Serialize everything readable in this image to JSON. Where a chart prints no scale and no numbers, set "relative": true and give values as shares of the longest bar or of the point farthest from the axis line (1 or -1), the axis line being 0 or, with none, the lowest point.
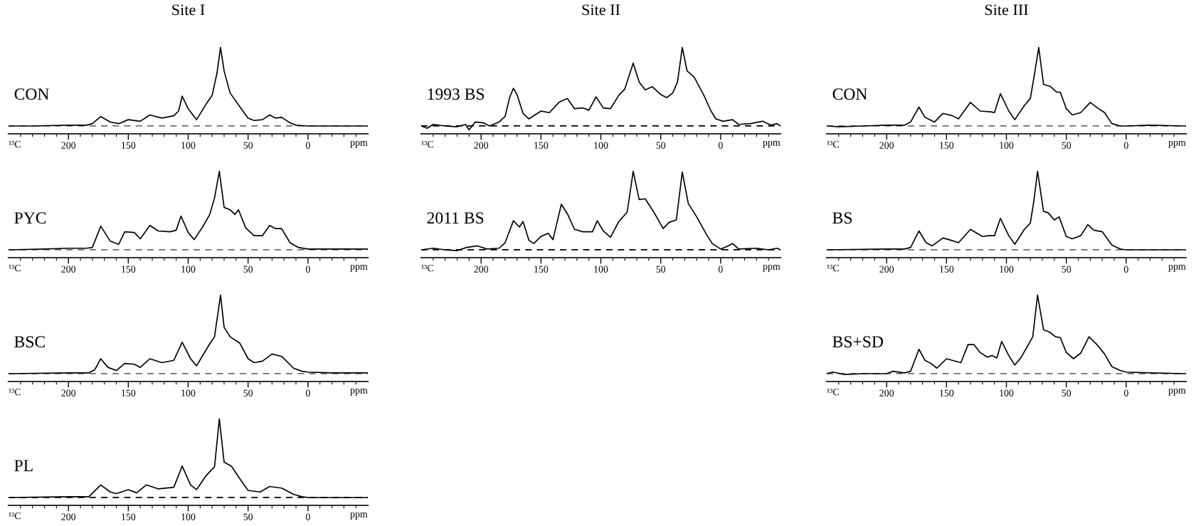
{
  "chart_data": [
    {
      "type": "line",
      "title": "Site I",
      "xlabel": "ppm",
      "annotations": [
        "¹³C"
      ],
      "relative": true,
      "tick_labels": "x",
      "xlim": [
        250,
        -50
      ],
      "xticks": [
        {
          "value": 240,
          "label": null
        },
        {
          "value": 230,
          "label": null
        },
        {
          "value": 220,
          "label": null
        },
        {
          "value": 210,
          "label": null
        },
        200,
        {
          "value": 190,
          "label": null
        },
        {
          "value": 180,
          "label": null
        },
        {
          "value": 170,
          "label": null
        },
        {
          "value": 160,
          "label": null
        },
        150,
        {
          "value": 140,
          "label": null
        },
        {
          "value": 130,
          "label": null
        },
        {
          "value": 120,
          "label": null
        },
        {
          "value": 110,
          "label": null
        },
        100,
        {
          "value": 90,
          "label": null
        },
        {
          "value": 80,
          "label": null
        },
        {
          "value": 70,
          "label": null
        },
        {
          "value": 60,
          "label": null
        },
        50,
        {
          "value": 40,
          "label": null
        },
        {
          "value": 30,
          "label": null
        },
        {
          "value": 20,
          "label": null
        },
        {
          "value": 10,
          "label": null
        },
        0,
        {
          "value": -10,
          "label": null
        },
        {
          "value": -20,
          "label": null
        },
        {
          "value": -30,
          "label": null
        },
        {
          "value": -40,
          "label": null
        }
      ],
      "ref_lines": [
        {
          "axis": "y",
          "value": 0,
          "color": "#6e6e6e",
          "line_style": "dashed"
        }
      ],
      "series": [
        {
          "name": "CON",
          "color": "#000000",
          "x": [
            250,
            230,
            200,
            185,
            180,
            173,
            165,
            158,
            150,
            140,
            132,
            122,
            112,
            108,
            105,
            100,
            93,
            85,
            80,
            76,
            73,
            70,
            65,
            58,
            50,
            45,
            38,
            32,
            27,
            22,
            15,
            10,
            0,
            -20,
            -50
          ],
          "values": [
            0,
            0,
            0.01,
            0.01,
            0.03,
            0.12,
            0.05,
            0.03,
            0.08,
            0.06,
            0.14,
            0.1,
            0.13,
            0.19,
            0.38,
            0.22,
            0.08,
            0.28,
            0.39,
            0.67,
            1.0,
            0.7,
            0.42,
            0.27,
            0.1,
            0.07,
            0.08,
            0.14,
            0.1,
            0.11,
            0.04,
            0.01,
            0,
            0,
            0
          ]
        }
      ]
    },
    {
      "type": "line",
      "xlabel": "ppm",
      "annotations": [
        "¹³C"
      ],
      "relative": true,
      "tick_labels": "x",
      "xlim": [
        250,
        -50
      ],
      "xticks": [
        {
          "value": 240,
          "label": null
        },
        {
          "value": 230,
          "label": null
        },
        {
          "value": 220,
          "label": null
        },
        {
          "value": 210,
          "label": null
        },
        200,
        {
          "value": 190,
          "label": null
        },
        {
          "value": 180,
          "label": null
        },
        {
          "value": 170,
          "label": null
        },
        {
          "value": 160,
          "label": null
        },
        150,
        {
          "value": 140,
          "label": null
        },
        {
          "value": 130,
          "label": null
        },
        {
          "value": 120,
          "label": null
        },
        {
          "value": 110,
          "label": null
        },
        100,
        {
          "value": 90,
          "label": null
        },
        {
          "value": 80,
          "label": null
        },
        {
          "value": 70,
          "label": null
        },
        {
          "value": 60,
          "label": null
        },
        50,
        {
          "value": 40,
          "label": null
        },
        {
          "value": 30,
          "label": null
        },
        {
          "value": 20,
          "label": null
        },
        {
          "value": 10,
          "label": null
        },
        0,
        {
          "value": -10,
          "label": null
        },
        {
          "value": -20,
          "label": null
        },
        {
          "value": -30,
          "label": null
        },
        {
          "value": -40,
          "label": null
        }
      ],
      "ref_lines": [
        {
          "axis": "y",
          "value": 0,
          "color": "#6e6e6e",
          "line_style": "dashed"
        }
      ],
      "series": [
        {
          "name": "PYC",
          "color": "#000000",
          "x": [
            250,
            220,
            200,
            185,
            180,
            173,
            165,
            158,
            153,
            145,
            140,
            132,
            125,
            115,
            110,
            106,
            100,
            95,
            88,
            82,
            78,
            74,
            70,
            65,
            61,
            58,
            52,
            45,
            38,
            32,
            27,
            22,
            15,
            8,
            0,
            -20,
            -50
          ],
          "values": [
            0,
            0.01,
            0.02,
            0.02,
            0.03,
            0.3,
            0.11,
            0.07,
            0.23,
            0.22,
            0.14,
            0.31,
            0.24,
            0.23,
            0.25,
            0.43,
            0.22,
            0.13,
            0.29,
            0.45,
            0.66,
            1.0,
            0.54,
            0.51,
            0.45,
            0.51,
            0.28,
            0.18,
            0.18,
            0.31,
            0.27,
            0.27,
            0.09,
            0.03,
            0.01,
            0.01,
            0.01
          ]
        }
      ]
    },
    {
      "type": "line",
      "xlabel": "ppm",
      "annotations": [
        "¹³C"
      ],
      "relative": true,
      "tick_labels": "x",
      "xlim": [
        250,
        -50
      ],
      "xticks": [
        {
          "value": 240,
          "label": null
        },
        {
          "value": 230,
          "label": null
        },
        {
          "value": 220,
          "label": null
        },
        {
          "value": 210,
          "label": null
        },
        200,
        {
          "value": 190,
          "label": null
        },
        {
          "value": 180,
          "label": null
        },
        {
          "value": 170,
          "label": null
        },
        {
          "value": 160,
          "label": null
        },
        150,
        {
          "value": 140,
          "label": null
        },
        {
          "value": 130,
          "label": null
        },
        {
          "value": 120,
          "label": null
        },
        {
          "value": 110,
          "label": null
        },
        100,
        {
          "value": 90,
          "label": null
        },
        {
          "value": 80,
          "label": null
        },
        {
          "value": 70,
          "label": null
        },
        {
          "value": 60,
          "label": null
        },
        50,
        {
          "value": 40,
          "label": null
        },
        {
          "value": 30,
          "label": null
        },
        {
          "value": 20,
          "label": null
        },
        {
          "value": 10,
          "label": null
        },
        0,
        {
          "value": -10,
          "label": null
        },
        {
          "value": -20,
          "label": null
        },
        {
          "value": -30,
          "label": null
        },
        {
          "value": -40,
          "label": null
        }
      ],
      "ref_lines": [
        {
          "axis": "y",
          "value": 0,
          "color": "#6e6e6e",
          "line_style": "dashed"
        }
      ],
      "series": [
        {
          "name": "BSC",
          "color": "#000000",
          "x": [
            250,
            200,
            183,
            178,
            173,
            167,
            160,
            153,
            145,
            140,
            132,
            122,
            112,
            105,
            98,
            93,
            82,
            78,
            73,
            70,
            65,
            57,
            50,
            45,
            38,
            30,
            22,
            12,
            5,
            0,
            -20,
            -50
          ],
          "values": [
            0,
            0.01,
            0.01,
            0.05,
            0.19,
            0.08,
            0.04,
            0.13,
            0.12,
            0.08,
            0.19,
            0.14,
            0.17,
            0.4,
            0.19,
            0.1,
            0.38,
            0.47,
            1.0,
            0.59,
            0.47,
            0.39,
            0.19,
            0.14,
            0.16,
            0.25,
            0.22,
            0.07,
            0.03,
            0.02,
            0.01,
            0.01
          ]
        }
      ]
    },
    {
      "type": "line",
      "xlabel": "ppm",
      "annotations": [
        "¹³C"
      ],
      "relative": true,
      "tick_labels": "x",
      "xlim": [
        250,
        -50
      ],
      "xticks": [
        {
          "value": 240,
          "label": null
        },
        {
          "value": 230,
          "label": null
        },
        {
          "value": 220,
          "label": null
        },
        {
          "value": 210,
          "label": null
        },
        200,
        {
          "value": 190,
          "label": null
        },
        {
          "value": 180,
          "label": null
        },
        {
          "value": 170,
          "label": null
        },
        {
          "value": 160,
          "label": null
        },
        150,
        {
          "value": 140,
          "label": null
        },
        {
          "value": 130,
          "label": null
        },
        {
          "value": 120,
          "label": null
        },
        {
          "value": 110,
          "label": null
        },
        100,
        {
          "value": 90,
          "label": null
        },
        {
          "value": 80,
          "label": null
        },
        {
          "value": 70,
          "label": null
        },
        {
          "value": 60,
          "label": null
        },
        50,
        {
          "value": 40,
          "label": null
        },
        {
          "value": 30,
          "label": null
        },
        {
          "value": 20,
          "label": null
        },
        {
          "value": 10,
          "label": null
        },
        0,
        {
          "value": -10,
          "label": null
        },
        {
          "value": -20,
          "label": null
        },
        {
          "value": -30,
          "label": null
        },
        {
          "value": -40,
          "label": null
        }
      ],
      "ref_lines": [
        {
          "axis": "y",
          "value": 0,
          "color": "#000000",
          "line_style": "dashed"
        }
      ],
      "series": [
        {
          "name": "PL",
          "color": "#000000",
          "x": [
            250,
            200,
            183,
            173,
            165,
            160,
            150,
            143,
            135,
            125,
            112,
            105,
            98,
            93,
            85,
            78,
            74,
            70,
            64,
            56,
            50,
            40,
            32,
            22,
            12,
            5,
            0,
            -50
          ],
          "values": [
            0,
            0.01,
            0.01,
            0.16,
            0.07,
            0.05,
            0.1,
            0.06,
            0.16,
            0.11,
            0.13,
            0.4,
            0.16,
            0.1,
            0.28,
            0.39,
            1.0,
            0.45,
            0.4,
            0.22,
            0.09,
            0.07,
            0.14,
            0.12,
            0.04,
            0.01,
            0,
            0
          ]
        }
      ]
    },
    {
      "type": "line",
      "title": "Site II",
      "xlabel": "ppm",
      "annotations": [
        "¹³C"
      ],
      "relative": true,
      "tick_labels": "x",
      "xlim": [
        250,
        -50
      ],
      "xticks": [
        {
          "value": 240,
          "label": null
        },
        {
          "value": 230,
          "label": null
        },
        {
          "value": 220,
          "label": null
        },
        {
          "value": 210,
          "label": null
        },
        200,
        {
          "value": 190,
          "label": null
        },
        {
          "value": 180,
          "label": null
        },
        {
          "value": 170,
          "label": null
        },
        {
          "value": 160,
          "label": null
        },
        150,
        {
          "value": 140,
          "label": null
        },
        {
          "value": 130,
          "label": null
        },
        {
          "value": 120,
          "label": null
        },
        {
          "value": 110,
          "label": null
        },
        100,
        {
          "value": 90,
          "label": null
        },
        {
          "value": 80,
          "label": null
        },
        {
          "value": 70,
          "label": null
        },
        {
          "value": 60,
          "label": null
        },
        50,
        {
          "value": 40,
          "label": null
        },
        {
          "value": 30,
          "label": null
        },
        {
          "value": 20,
          "label": null
        },
        {
          "value": 10,
          "label": null
        },
        0,
        {
          "value": -10,
          "label": null
        },
        {
          "value": -20,
          "label": null
        },
        {
          "value": -30,
          "label": null
        },
        {
          "value": -40,
          "label": null
        }
      ],
      "ref_lines": [
        {
          "axis": "y",
          "value": 0,
          "color": "#000000",
          "line_style": "dashed"
        }
      ],
      "series": [
        {
          "name": "1993 BS",
          "color": "#000000",
          "x": [
            250,
            245,
            240,
            230,
            220,
            213,
            210,
            205,
            198,
            193,
            185,
            180,
            176,
            173,
            170,
            165,
            160,
            150,
            143,
            135,
            128,
            122,
            115,
            110,
            104,
            98,
            92,
            85,
            80,
            73,
            68,
            63,
            57,
            50,
            45,
            40,
            36,
            32,
            28,
            22,
            14,
            8,
            4,
            -2,
            -10,
            -15,
            -25,
            -35,
            -42,
            -47,
            -50
          ],
          "values": [
            0,
            -0.03,
            0.02,
            0,
            -0.01,
            0.02,
            -0.05,
            0.05,
            0.04,
            0,
            0.05,
            0.12,
            0.37,
            0.48,
            0.4,
            0.16,
            0.09,
            0.19,
            0.17,
            0.3,
            0.35,
            0.22,
            0.23,
            0.2,
            0.37,
            0.23,
            0.22,
            0.39,
            0.47,
            0.8,
            0.56,
            0.46,
            0.5,
            0.4,
            0.36,
            0.42,
            0.56,
            1.0,
            0.7,
            0.62,
            0.39,
            0.19,
            0.09,
            0.06,
            0.08,
            0.02,
            0.03,
            0.06,
            0.01,
            0.03,
            0
          ]
        }
      ]
    },
    {
      "type": "line",
      "xlabel": "ppm",
      "annotations": [
        "¹³C"
      ],
      "relative": true,
      "tick_labels": "x",
      "xlim": [
        250,
        -50
      ],
      "xticks": [
        {
          "value": 240,
          "label": null
        },
        {
          "value": 230,
          "label": null
        },
        {
          "value": 220,
          "label": null
        },
        {
          "value": 210,
          "label": null
        },
        200,
        {
          "value": 190,
          "label": null
        },
        {
          "value": 180,
          "label": null
        },
        {
          "value": 170,
          "label": null
        },
        {
          "value": 160,
          "label": null
        },
        150,
        {
          "value": 140,
          "label": null
        },
        {
          "value": 130,
          "label": null
        },
        {
          "value": 120,
          "label": null
        },
        {
          "value": 110,
          "label": null
        },
        100,
        {
          "value": 90,
          "label": null
        },
        {
          "value": 80,
          "label": null
        },
        {
          "value": 70,
          "label": null
        },
        {
          "value": 60,
          "label": null
        },
        50,
        {
          "value": 40,
          "label": null
        },
        {
          "value": 30,
          "label": null
        },
        {
          "value": 20,
          "label": null
        },
        {
          "value": 10,
          "label": null
        },
        0,
        {
          "value": -10,
          "label": null
        },
        {
          "value": -20,
          "label": null
        },
        {
          "value": -30,
          "label": null
        },
        {
          "value": -40,
          "label": null
        }
      ],
      "ref_lines": [
        {
          "axis": "y",
          "value": 0,
          "color": "#000000",
          "line_style": "dashed"
        }
      ],
      "series": [
        {
          "name": "2011 BS",
          "color": "#000000",
          "x": [
            250,
            240,
            230,
            220,
            212,
            203,
            195,
            185,
            180,
            173,
            168,
            165,
            160,
            156,
            150,
            144,
            140,
            133,
            128,
            122,
            115,
            107,
            103,
            98,
            92,
            85,
            78,
            73,
            68,
            63,
            57,
            52,
            48,
            43,
            37,
            32,
            27,
            20,
            12,
            7,
            0,
            -5,
            -10,
            -15,
            -30,
            -40,
            -47,
            -50
          ],
          "values": [
            0,
            0.02,
            0,
            -0.01,
            0.03,
            0.05,
            0.01,
            0.02,
            0.09,
            0.37,
            0.29,
            0.36,
            0.12,
            0.08,
            0.17,
            0.21,
            0.13,
            0.58,
            0.46,
            0.26,
            0.23,
            0.23,
            0.37,
            0.24,
            0.16,
            0.36,
            0.48,
            1.0,
            0.64,
            0.65,
            0.51,
            0.38,
            0.27,
            0.35,
            0.38,
            0.99,
            0.59,
            0.42,
            0.2,
            0.08,
            0.01,
            0.04,
            0.08,
            0.01,
            0.02,
            0,
            0.02,
            0
          ]
        }
      ]
    },
    {
      "type": "line",
      "title": "Site III",
      "xlabel": "ppm",
      "annotations": [
        "¹³C"
      ],
      "relative": true,
      "tick_labels": "x",
      "xlim": [
        250,
        -50
      ],
      "xticks": [
        {
          "value": 240,
          "label": null
        },
        {
          "value": 230,
          "label": null
        },
        {
          "value": 220,
          "label": null
        },
        {
          "value": 210,
          "label": null
        },
        200,
        {
          "value": 190,
          "label": null
        },
        {
          "value": 180,
          "label": null
        },
        {
          "value": 170,
          "label": null
        },
        {
          "value": 160,
          "label": null
        },
        150,
        {
          "value": 140,
          "label": null
        },
        {
          "value": 130,
          "label": null
        },
        {
          "value": 120,
          "label": null
        },
        {
          "value": 110,
          "label": null
        },
        100,
        {
          "value": 90,
          "label": null
        },
        {
          "value": 80,
          "label": null
        },
        {
          "value": 70,
          "label": null
        },
        {
          "value": 60,
          "label": null
        },
        50,
        {
          "value": 40,
          "label": null
        },
        {
          "value": 30,
          "label": null
        },
        {
          "value": 20,
          "label": null
        },
        {
          "value": 10,
          "label": null
        },
        0,
        {
          "value": -10,
          "label": null
        },
        {
          "value": -20,
          "label": null
        },
        {
          "value": -30,
          "label": null
        },
        {
          "value": -40,
          "label": null
        }
      ],
      "ref_lines": [
        {
          "axis": "y",
          "value": 0,
          "color": "#6e6e6e",
          "line_style": "dashed"
        }
      ],
      "series": [
        {
          "name": "CON",
          "color": "#000000",
          "x": [
            250,
            240,
            220,
            200,
            185,
            180,
            173,
            168,
            160,
            153,
            145,
            140,
            130,
            122,
            113,
            110,
            105,
            98,
            93,
            85,
            80,
            77,
            73,
            69,
            63,
            58,
            55,
            50,
            45,
            38,
            30,
            24,
            18,
            12,
            5,
            0,
            -20,
            -50
          ],
          "values": [
            0,
            -0.01,
            0,
            0.01,
            0.01,
            0.05,
            0.24,
            0.11,
            0.05,
            0.16,
            0.13,
            0.09,
            0.3,
            0.19,
            0.18,
            0.17,
            0.41,
            0.19,
            0.08,
            0.26,
            0.35,
            0.62,
            1.0,
            0.53,
            0.5,
            0.43,
            0.43,
            0.22,
            0.14,
            0.17,
            0.3,
            0.23,
            0.17,
            0.03,
            0,
            0,
            0.01,
            0
          ]
        }
      ]
    },
    {
      "type": "line",
      "xlabel": "ppm",
      "annotations": [
        "¹³C"
      ],
      "relative": true,
      "tick_labels": "x",
      "xlim": [
        250,
        -50
      ],
      "xticks": [
        {
          "value": 240,
          "label": null
        },
        {
          "value": 230,
          "label": null
        },
        {
          "value": 220,
          "label": null
        },
        {
          "value": 210,
          "label": null
        },
        200,
        {
          "value": 190,
          "label": null
        },
        {
          "value": 180,
          "label": null
        },
        {
          "value": 170,
          "label": null
        },
        {
          "value": 160,
          "label": null
        },
        150,
        {
          "value": 140,
          "label": null
        },
        {
          "value": 130,
          "label": null
        },
        {
          "value": 120,
          "label": null
        },
        {
          "value": 110,
          "label": null
        },
        100,
        {
          "value": 90,
          "label": null
        },
        {
          "value": 80,
          "label": null
        },
        {
          "value": 70,
          "label": null
        },
        {
          "value": 60,
          "label": null
        },
        50,
        {
          "value": 40,
          "label": null
        },
        {
          "value": 30,
          "label": null
        },
        {
          "value": 20,
          "label": null
        },
        {
          "value": 10,
          "label": null
        },
        0,
        {
          "value": -10,
          "label": null
        },
        {
          "value": -20,
          "label": null
        },
        {
          "value": -30,
          "label": null
        },
        {
          "value": -40,
          "label": null
        }
      ],
      "ref_lines": [
        {
          "axis": "y",
          "value": 0,
          "color": "#6e6e6e",
          "line_style": "dashed"
        }
      ],
      "series": [
        {
          "name": "BS",
          "color": "#000000",
          "x": [
            250,
            200,
            185,
            180,
            173,
            167,
            162,
            153,
            148,
            140,
            130,
            120,
            115,
            110,
            105,
            98,
            93,
            85,
            80,
            77,
            74,
            69,
            65,
            60,
            56,
            50,
            45,
            38,
            32,
            27,
            20,
            12,
            5,
            0,
            -50
          ],
          "values": [
            0,
            0.01,
            0.01,
            0.03,
            0.24,
            0.09,
            0.05,
            0.15,
            0.13,
            0.09,
            0.26,
            0.17,
            0.18,
            0.18,
            0.4,
            0.18,
            0.07,
            0.26,
            0.34,
            0.63,
            1.0,
            0.49,
            0.47,
            0.38,
            0.42,
            0.17,
            0.14,
            0.18,
            0.32,
            0.25,
            0.23,
            0.06,
            0.01,
            0,
            0
          ]
        }
      ]
    },
    {
      "type": "line",
      "xlabel": "ppm",
      "annotations": [
        "¹³C"
      ],
      "relative": true,
      "tick_labels": "x",
      "xlim": [
        250,
        -50
      ],
      "xticks": [
        {
          "value": 240,
          "label": null
        },
        {
          "value": 230,
          "label": null
        },
        {
          "value": 220,
          "label": null
        },
        {
          "value": 210,
          "label": null
        },
        200,
        {
          "value": 190,
          "label": null
        },
        {
          "value": 180,
          "label": null
        },
        {
          "value": 170,
          "label": null
        },
        {
          "value": 160,
          "label": null
        },
        150,
        {
          "value": 140,
          "label": null
        },
        {
          "value": 130,
          "label": null
        },
        {
          "value": 120,
          "label": null
        },
        {
          "value": 110,
          "label": null
        },
        100,
        {
          "value": 90,
          "label": null
        },
        {
          "value": 80,
          "label": null
        },
        {
          "value": 70,
          "label": null
        },
        {
          "value": 60,
          "label": null
        },
        50,
        {
          "value": 40,
          "label": null
        },
        {
          "value": 30,
          "label": null
        },
        {
          "value": 20,
          "label": null
        },
        {
          "value": 10,
          "label": null
        },
        0,
        {
          "value": -10,
          "label": null
        },
        {
          "value": -20,
          "label": null
        },
        {
          "value": -30,
          "label": null
        },
        {
          "value": -40,
          "label": null
        }
      ],
      "ref_lines": [
        {
          "axis": "y",
          "value": 0,
          "color": "#6e6e6e",
          "line_style": "dashed"
        }
      ],
      "series": [
        {
          "name": "BS+SD",
          "color": "#000000",
          "x": [
            250,
            245,
            235,
            220,
            200,
            195,
            185,
            180,
            173,
            168,
            163,
            158,
            150,
            143,
            138,
            132,
            127,
            122,
            116,
            112,
            108,
            104,
            98,
            93,
            88,
            82,
            78,
            74,
            69,
            64,
            59,
            55,
            50,
            44,
            38,
            31,
            25,
            18,
            12,
            5,
            0,
            -20,
            -50
          ],
          "values": [
            0,
            0.02,
            -0.01,
            0,
            0,
            0.03,
            0.01,
            0.03,
            0.31,
            0.17,
            0.13,
            0.07,
            0.19,
            0.16,
            0.14,
            0.37,
            0.37,
            0.27,
            0.21,
            0.23,
            0.2,
            0.41,
            0.23,
            0.11,
            0.2,
            0.36,
            0.47,
            1.0,
            0.56,
            0.53,
            0.47,
            0.46,
            0.27,
            0.19,
            0.26,
            0.47,
            0.38,
            0.25,
            0.09,
            0.04,
            0.02,
            0.01,
            0
          ]
        }
      ]
    }
  ]
}
